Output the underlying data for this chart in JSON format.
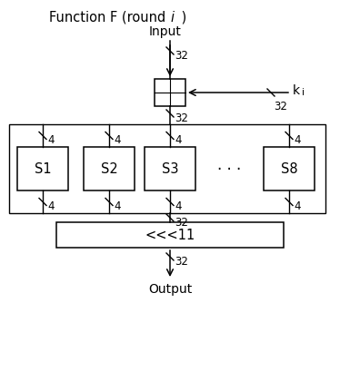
{
  "title_normal": "Function F (round ",
  "title_italic": "i",
  "title_end": " )",
  "input_label": "Input",
  "output_label": "Output",
  "ki_label": "k",
  "ki_sub": "i",
  "bits_32": "32",
  "bits_4": "4",
  "shift_label": "<<<11",
  "sboxes": [
    "S1",
    "S2",
    "S3",
    "S8"
  ],
  "dots": "· · ·",
  "bg_color": "#ffffff",
  "line_color": "#000000",
  "text_color": "#000000",
  "font_size_title": 10.5,
  "font_size_label": 10,
  "font_size_bits": 8.5,
  "font_size_sbox": 10.5,
  "font_size_shift": 10.5,
  "font_size_dots": 12
}
